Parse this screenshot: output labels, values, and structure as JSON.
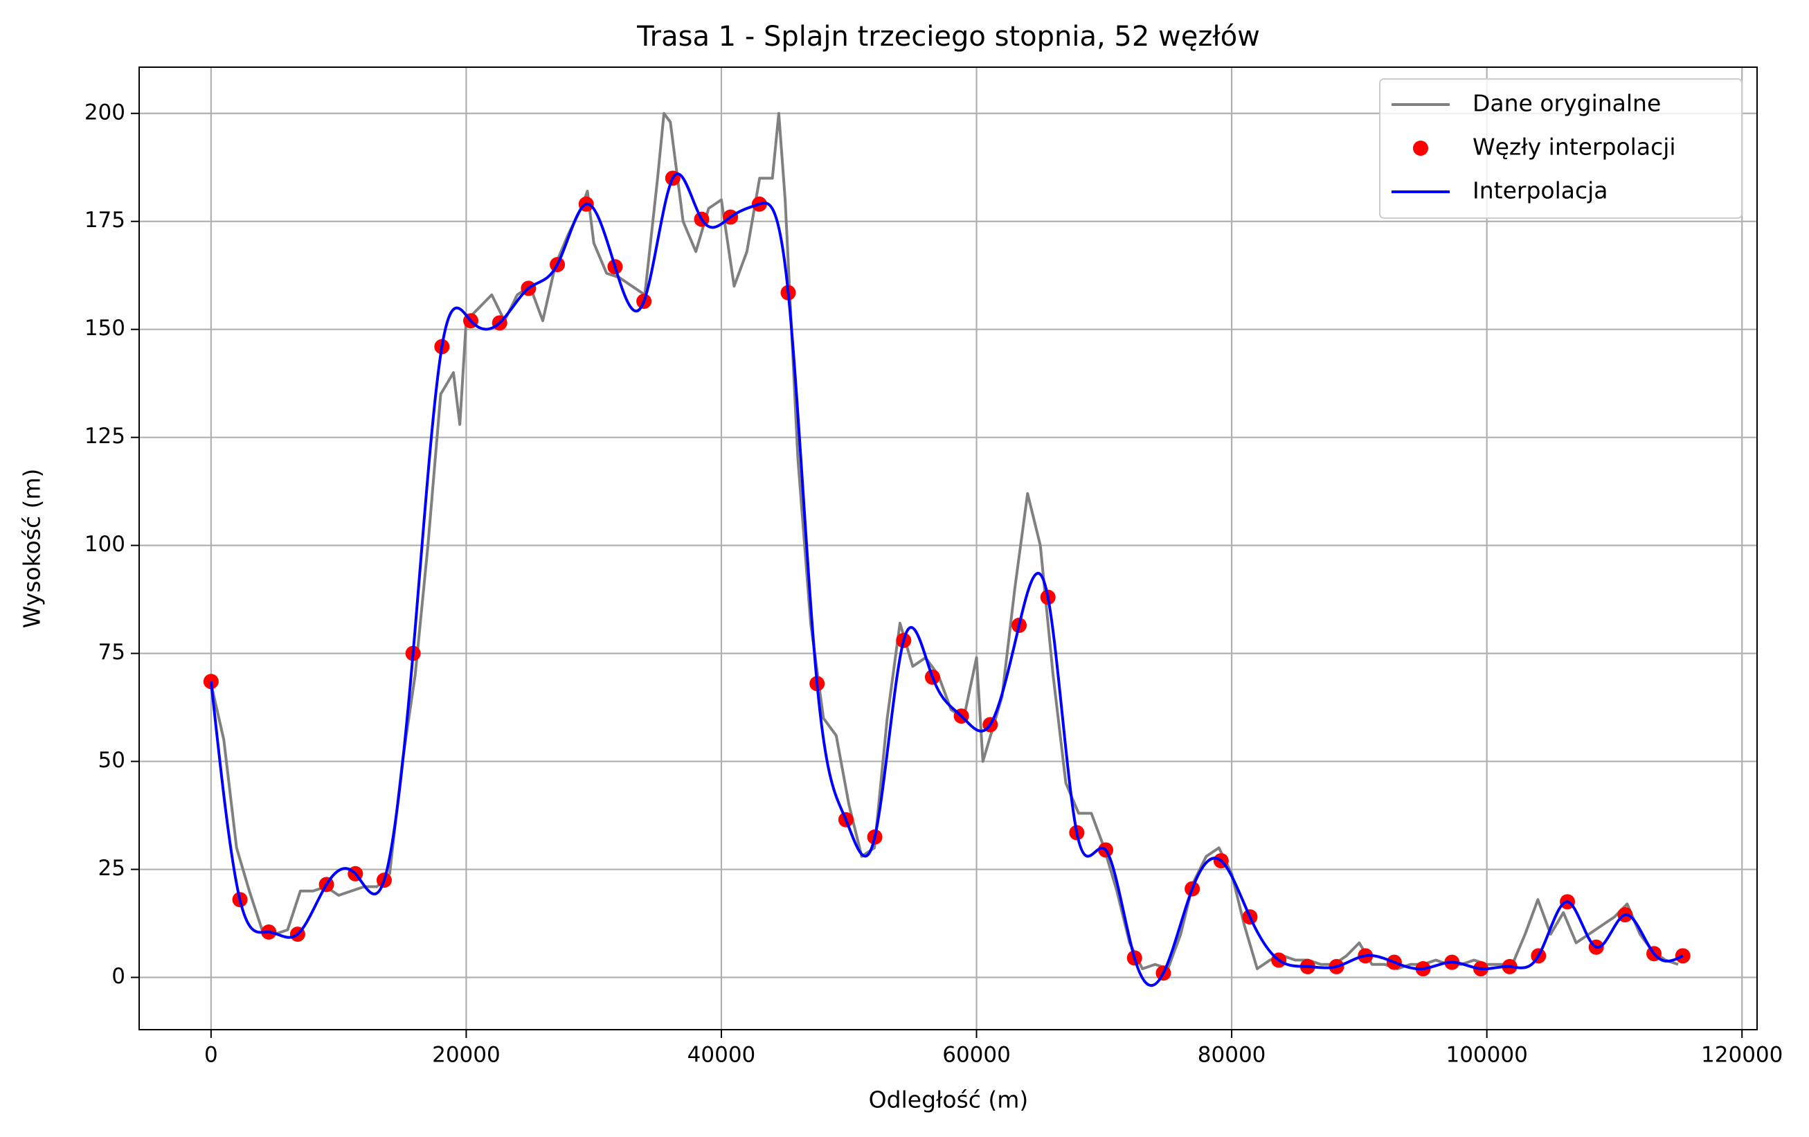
{
  "chart_data": {
    "type": "line",
    "title": "Trasa 1 - Splajn trzeciego stopnia, 52 węzłów",
    "xlabel": "Odległość (m)",
    "ylabel": "Wysokość (m)",
    "xlim": [
      -5636,
      121182
    ],
    "ylim": [
      -12.1,
      210.7
    ],
    "xticks": [
      0,
      20000,
      40000,
      60000,
      80000,
      100000,
      120000
    ],
    "yticks": [
      0,
      25,
      50,
      75,
      100,
      125,
      150,
      175,
      200
    ],
    "grid": true,
    "legend": "upper right",
    "series": [
      {
        "name": "Dane oryginalne",
        "color": "#808080",
        "style": "line",
        "x": [
          0,
          1000,
          2000,
          3000,
          4000,
          5000,
          6000,
          7000,
          8000,
          9000,
          10000,
          11000,
          12000,
          13000,
          14000,
          15000,
          16000,
          17000,
          18000,
          19000,
          19500,
          20000,
          21000,
          22000,
          23000,
          24000,
          25000,
          26000,
          27000,
          28000,
          29000,
          29500,
          30000,
          31000,
          32000,
          33000,
          34000,
          35000,
          35500,
          36000,
          37000,
          38000,
          39000,
          40000,
          41000,
          42000,
          43000,
          44000,
          44500,
          45000,
          46000,
          47000,
          48000,
          49000,
          50000,
          51000,
          52000,
          53000,
          54000,
          55000,
          56000,
          57000,
          58000,
          59000,
          60000,
          60500,
          61000,
          62000,
          63000,
          64000,
          65000,
          66000,
          67000,
          68000,
          69000,
          70000,
          71000,
          72000,
          73000,
          74000,
          75000,
          76000,
          77000,
          78000,
          79000,
          80000,
          81000,
          82000,
          83000,
          84000,
          85000,
          86000,
          87000,
          88000,
          89000,
          90000,
          91000,
          92000,
          93000,
          94000,
          95000,
          96000,
          97000,
          98000,
          99000,
          100000,
          101000,
          102000,
          103000,
          104000,
          105000,
          106000,
          107000,
          108000,
          109000,
          110000,
          111000,
          112000,
          113000,
          114000,
          115000
        ],
        "values": [
          68,
          55,
          30,
          20,
          11,
          10,
          11,
          20,
          20,
          21,
          19,
          20,
          21,
          21,
          24,
          50,
          70,
          100,
          135,
          140,
          128,
          152,
          155,
          158,
          152,
          158,
          160,
          152,
          165,
          172,
          178,
          182,
          170,
          163,
          162,
          160,
          158,
          185,
          200,
          198,
          175,
          168,
          178,
          180,
          160,
          168,
          185,
          185,
          200,
          180,
          120,
          82,
          60,
          56,
          40,
          28,
          30,
          60,
          82,
          72,
          74,
          70,
          62,
          60,
          74,
          50,
          55,
          65,
          90,
          112,
          100,
          70,
          45,
          38,
          38,
          30,
          20,
          8,
          2,
          3,
          2,
          10,
          22,
          28,
          30,
          24,
          12,
          2,
          4,
          5,
          4,
          4,
          3,
          3,
          5,
          8,
          3,
          3,
          2,
          3,
          3,
          4,
          3,
          3,
          4,
          3,
          3,
          3,
          10,
          18,
          10,
          15,
          8,
          10,
          12,
          14,
          17,
          10,
          6,
          4,
          3
        ]
      },
      {
        "name": "Węzły interpolacji",
        "color": "#ff0000",
        "style": "markers",
        "x": [
          0,
          2262,
          4524,
          6786,
          9048,
          11310,
          13572,
          15834,
          18096,
          20358,
          22620,
          24882,
          27144,
          29406,
          31668,
          33930,
          36192,
          38454,
          40716,
          42978,
          45240,
          47502,
          49764,
          52026,
          54288,
          56550,
          58812,
          61074,
          63336,
          65598,
          67860,
          70122,
          72384,
          74646,
          76908,
          79170,
          81432,
          83694,
          85956,
          88218,
          90480,
          92742,
          95004,
          97266,
          99528,
          101790,
          104052,
          106314,
          108576,
          110838,
          113100,
          115362
        ],
        "values": [
          68.5,
          18,
          10.5,
          10,
          21.5,
          24,
          22.5,
          75,
          146,
          152,
          151.5,
          159.5,
          165,
          179,
          164.5,
          156.5,
          185,
          175.5,
          176,
          179,
          158.5,
          68,
          36.5,
          32.5,
          78,
          69.5,
          60.5,
          58.5,
          81.5,
          88,
          33.5,
          29.5,
          4.5,
          1,
          20.5,
          27,
          14,
          4,
          2.5,
          2.5,
          5,
          3.5,
          2,
          3.5,
          2,
          2.5,
          5,
          17.5,
          7,
          14.5,
          5.5,
          5
        ]
      },
      {
        "name": "Interpolacja",
        "color": "#0000ff",
        "style": "spline",
        "x": [
          0,
          2262,
          4524,
          6786,
          9048,
          11310,
          13572,
          15834,
          18096,
          20358,
          22620,
          24882,
          27144,
          29406,
          31668,
          33930,
          36192,
          38454,
          40716,
          42978,
          45240,
          47502,
          49764,
          52026,
          54288,
          56550,
          58812,
          61074,
          63336,
          65598,
          67860,
          70122,
          72384,
          74646,
          76908,
          79170,
          81432,
          83694,
          85956,
          88218,
          90480,
          92742,
          95004,
          97266,
          99528,
          101790,
          104052,
          106314,
          108576,
          110838,
          113100,
          115362
        ],
        "values": [
          68.5,
          18,
          10.5,
          10,
          21.5,
          24,
          22.5,
          75,
          146,
          152,
          151.5,
          159.5,
          165,
          179,
          164.5,
          156.5,
          185,
          175.5,
          176,
          179,
          158.5,
          68,
          36.5,
          32.5,
          78,
          69.5,
          60.5,
          58.5,
          81.5,
          88,
          33.5,
          29.5,
          4.5,
          1,
          20.5,
          27,
          14,
          4,
          2.5,
          2.5,
          5,
          3.5,
          2,
          3.5,
          2,
          2.5,
          5,
          17.5,
          7,
          14.5,
          5.5,
          5
        ]
      }
    ]
  }
}
